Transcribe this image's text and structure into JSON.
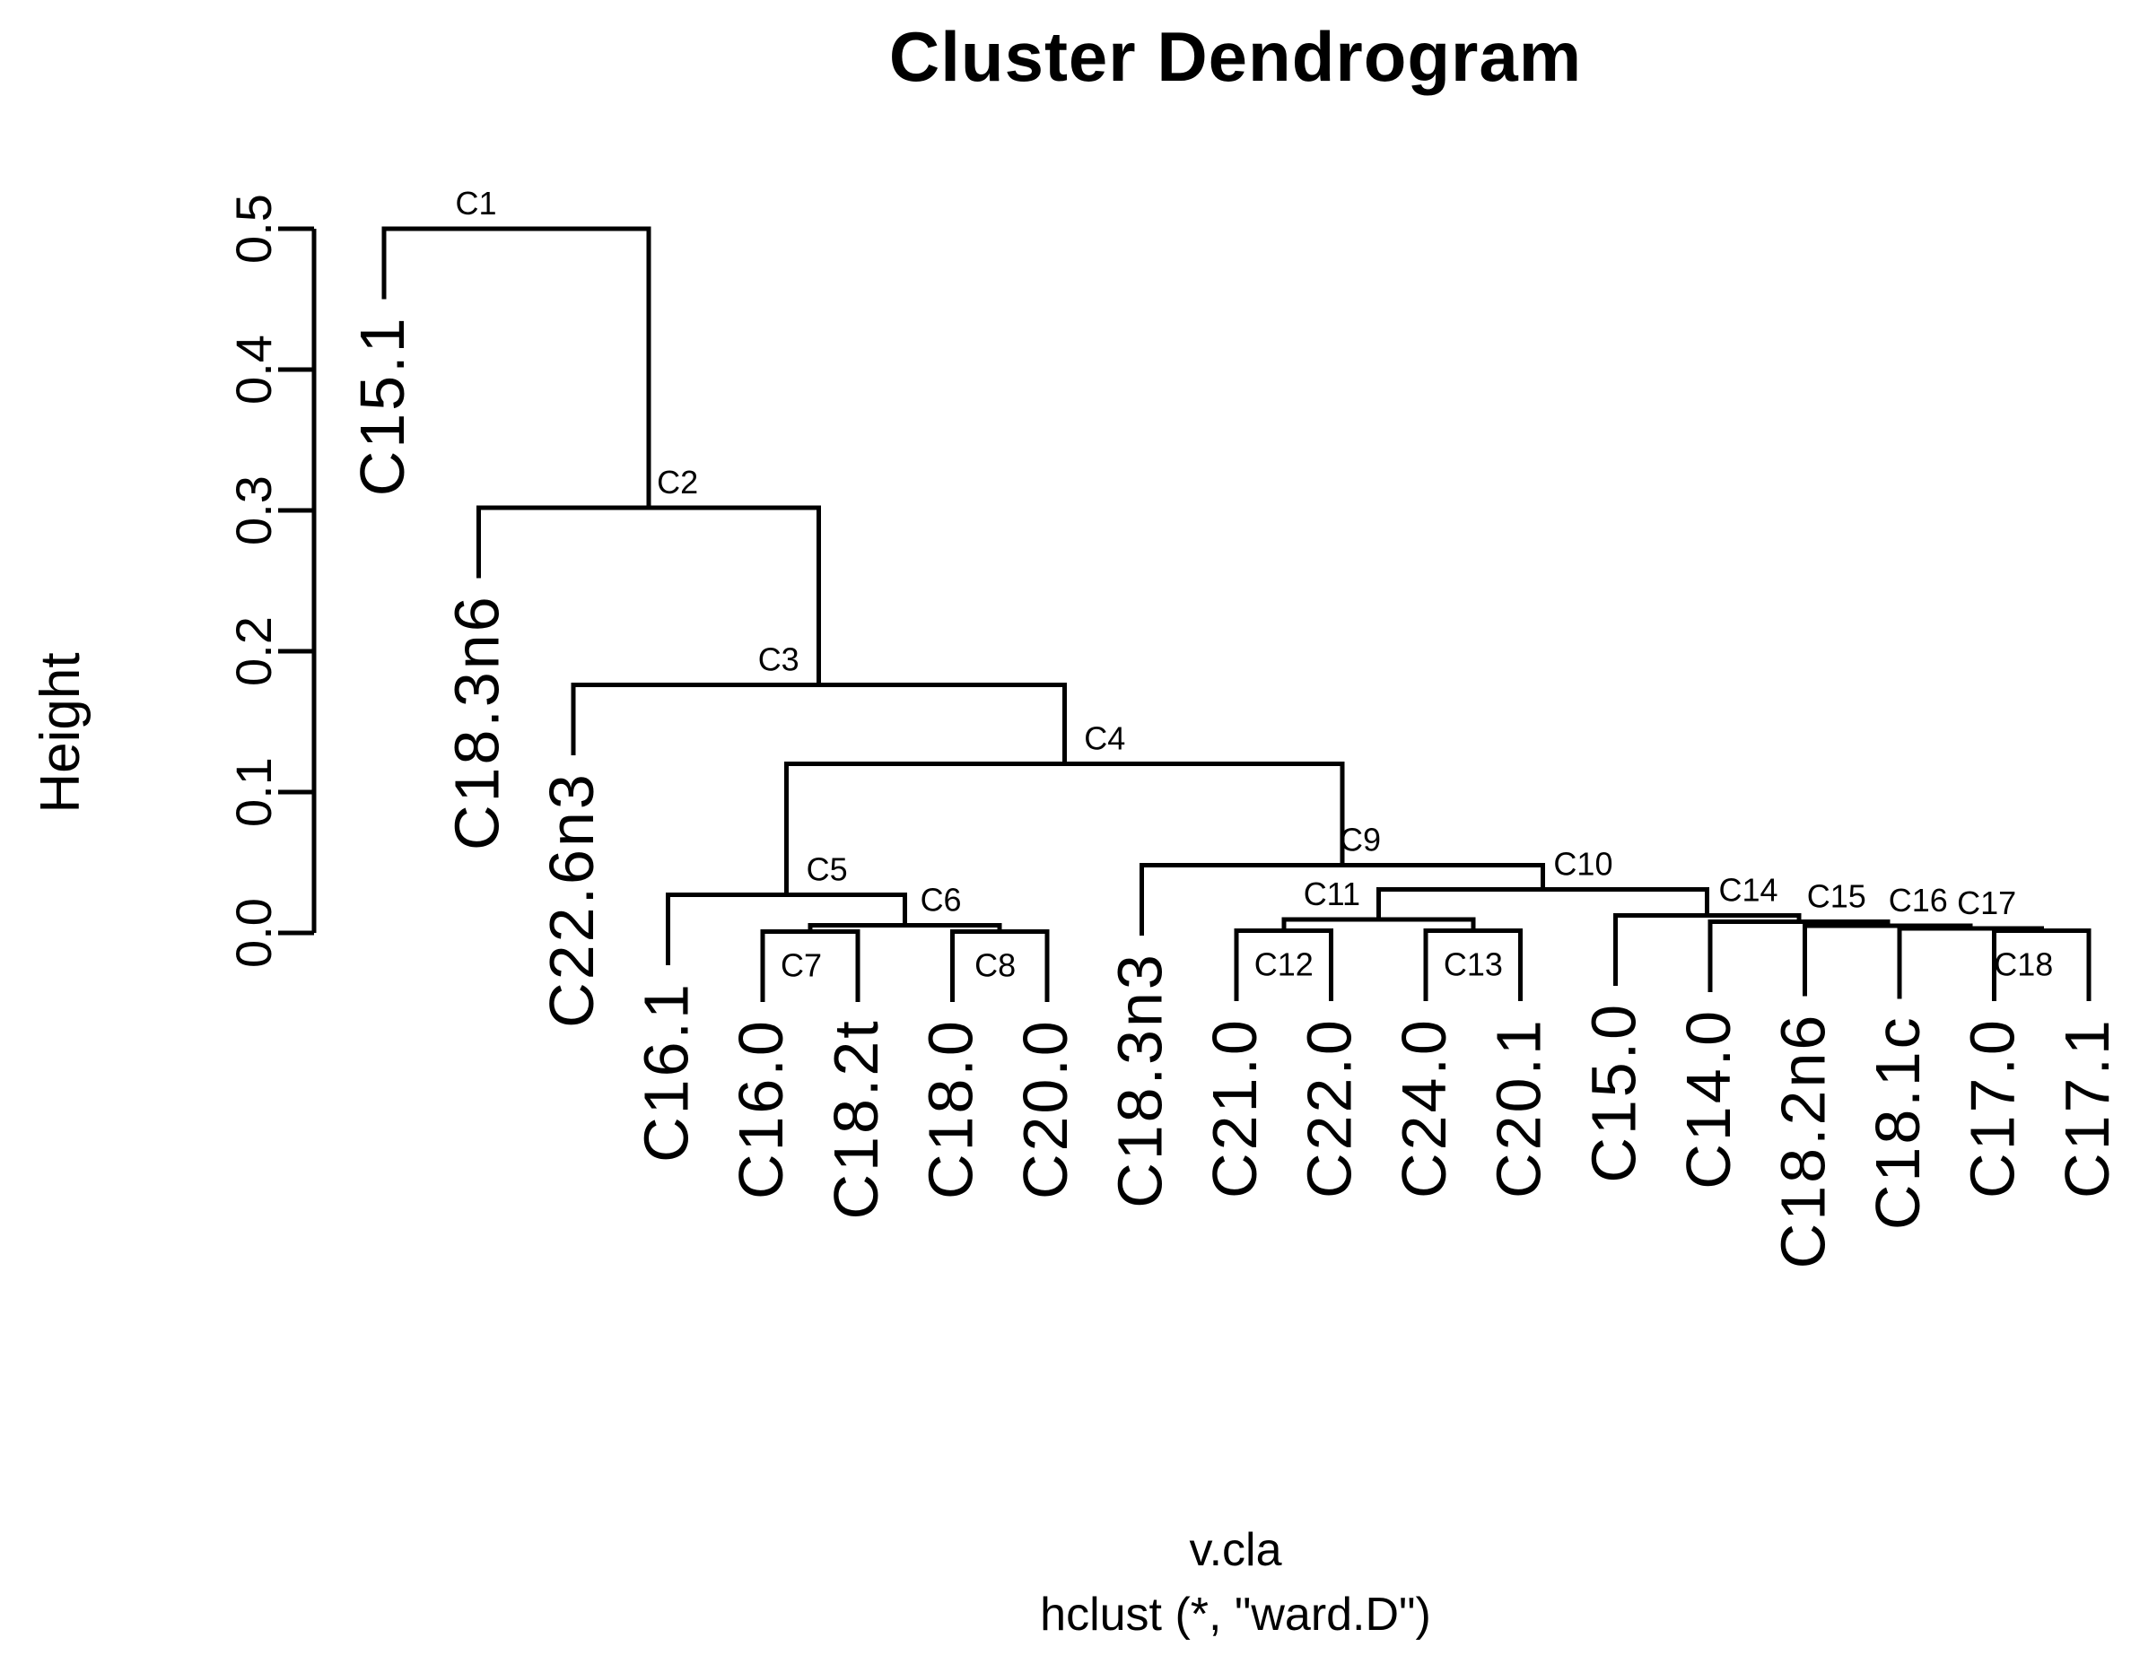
{
  "window": {
    "background": "#ffffff"
  },
  "colors": {
    "line": "#000000",
    "text": "#000000",
    "background": "#ffffff"
  },
  "chart_data": {
    "type": "dendrogram",
    "title": "Cluster Dendrogram",
    "ylabel": "Height",
    "xlabel": "v.cla",
    "subtitle": "hclust (*, \"ward.D\")",
    "ylim": [
      0.0,
      0.5
    ],
    "yticks": [
      "0.0",
      "0.1",
      "0.2",
      "0.3",
      "0.4",
      "0.5"
    ],
    "grid": false,
    "hang": 0.05,
    "leaves": [
      "C15.1",
      "C18.3n6",
      "C22.6n3",
      "C16.1",
      "C16.0",
      "C18.2t",
      "C18.0",
      "C20.0",
      "C18.3n3",
      "C21.0",
      "C22.0",
      "C24.0",
      "C20.1",
      "C15.0",
      "C14.0",
      "C18.2n6",
      "C18.1c",
      "C17.0",
      "C17.1"
    ],
    "nodes": [
      {
        "name": "C1",
        "height": 0.5,
        "children": [
          "C15.1",
          "C2"
        ],
        "label_side": "above",
        "label_dx": -45
      },
      {
        "name": "C2",
        "height": 0.302,
        "children": [
          "C18.3n6",
          "C3"
        ],
        "label_side": "above",
        "label_dx": 32
      },
      {
        "name": "C3",
        "height": 0.176,
        "children": [
          "C22.6n3",
          "C4"
        ],
        "label_side": "above",
        "label_dx": -45
      },
      {
        "name": "C4",
        "height": 0.12,
        "children": [
          "C5",
          "C9"
        ],
        "label_side": "above",
        "label_dx": 45
      },
      {
        "name": "C5",
        "height": 0.027,
        "children": [
          "C16.1",
          "C6"
        ],
        "label_side": "above",
        "label_dx": 45
      },
      {
        "name": "C6",
        "height": 0.0055,
        "children": [
          "C7",
          "C8"
        ],
        "label_side": "above",
        "label_dx": 40
      },
      {
        "name": "C7",
        "height": 0.0008,
        "children": [
          "C16.0",
          "C18.2t"
        ],
        "label_side": "below",
        "label_dx": -10
      },
      {
        "name": "C8",
        "height": 0.0008,
        "children": [
          "C18.0",
          "C20.0"
        ],
        "label_side": "below",
        "label_dx": -5
      },
      {
        "name": "C9",
        "height": 0.048,
        "children": [
          "C18.3n3",
          "C10"
        ],
        "label_side": "above",
        "label_dx": 20
      },
      {
        "name": "C10",
        "height": 0.031,
        "children": [
          "C11",
          "C14"
        ],
        "label_side": "above",
        "label_dx": 45
      },
      {
        "name": "C11",
        "height": 0.0095,
        "children": [
          "C12",
          "C13"
        ],
        "label_side": "above",
        "label_dx": -52
      },
      {
        "name": "C12",
        "height": 0.0015,
        "children": [
          "C21.0",
          "C22.0"
        ],
        "label_side": "below",
        "label_dx": 0
      },
      {
        "name": "C13",
        "height": 0.0015,
        "children": [
          "C24.0",
          "C20.1"
        ],
        "label_side": "below",
        "label_dx": 0
      },
      {
        "name": "C14",
        "height": 0.0125,
        "children": [
          "C15.0",
          "C15"
        ],
        "label_side": "above",
        "label_dx": 46
      },
      {
        "name": "C15",
        "height": 0.008,
        "children": [
          "C14.0",
          "C16"
        ],
        "label_side": "above",
        "label_dx": 42
      },
      {
        "name": "C16",
        "height": 0.005,
        "children": [
          "C18.2n6",
          "C17"
        ],
        "label_side": "above",
        "label_dx": 34
      },
      {
        "name": "C17",
        "height": 0.0033,
        "children": [
          "C18.1c",
          "C18"
        ],
        "label_side": "above",
        "label_dx": 18
      },
      {
        "name": "C18",
        "height": 0.0015,
        "children": [
          "C17.0",
          "C17.1"
        ],
        "label_side": "below",
        "label_dx": -20
      }
    ]
  }
}
